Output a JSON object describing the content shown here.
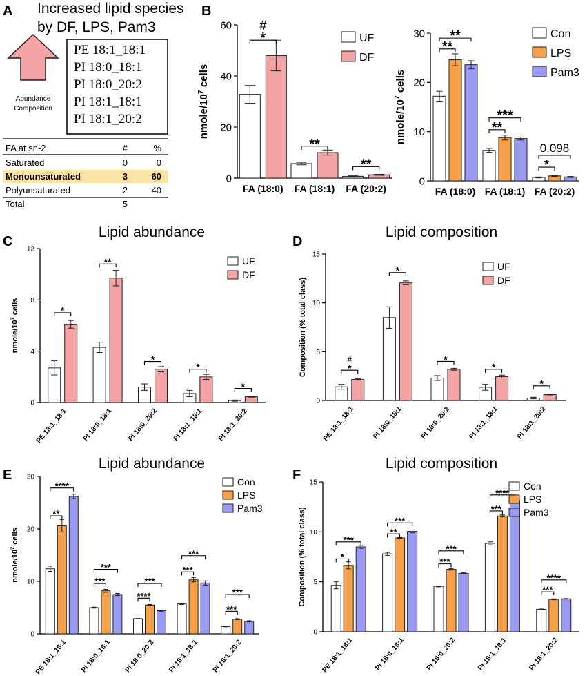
{
  "panel_a": {
    "label": "A",
    "title_line1": "Increased lipid species",
    "title_line2": "by DF, LPS, Pam3",
    "arrow_caption_1": "Abundance",
    "arrow_caption_2": "Composition",
    "species": [
      "PE 18:1_18:1",
      "PI 18:0_18:1",
      "PI 18:0_20:2",
      "PI 18:1_18:1",
      "PI 18:1_20:2"
    ],
    "table": {
      "header": [
        "FA at sn-2",
        "#",
        "%"
      ],
      "rows": [
        [
          "Saturated",
          "0",
          "0"
        ],
        [
          "Monounsaturated",
          "3",
          "60"
        ],
        [
          "Polyunsaturated",
          "2",
          "40"
        ],
        [
          "Total",
          "5",
          ""
        ]
      ],
      "highlight_color": "#fbe3a6"
    }
  },
  "colors": {
    "UF": "#ffffff",
    "DF": "#f4a4a4",
    "Con": "#ffffff",
    "LPS": "#f5a04a",
    "Pam3": "#9a9af2"
  },
  "chart_data": [
    {
      "id": "B1",
      "panel": "B",
      "type": "bar",
      "title": "",
      "categories": [
        "FA (18:0)",
        "FA (18:1)",
        "FA (20:2)"
      ],
      "series": [
        {
          "name": "UF",
          "values": [
            32.8,
            5.7,
            0.7
          ],
          "errors": [
            3.5,
            0.5,
            0.2
          ]
        },
        {
          "name": "DF",
          "values": [
            48,
            10,
            1.3
          ],
          "errors": [
            6,
            1,
            0.2
          ]
        }
      ],
      "ylabel": "nmole/10^7 cells",
      "ylim": [
        0,
        60
      ],
      "yticks": [
        0,
        20,
        40,
        60
      ],
      "annotations": [
        {
          "cat": 0,
          "from": 0,
          "to": 1,
          "text": "*",
          "extra": "#",
          "y": 54
        },
        {
          "cat": 1,
          "from": 0,
          "to": 1,
          "text": "**",
          "y": 12.5
        },
        {
          "cat": 2,
          "from": 0,
          "to": 1,
          "text": "**",
          "y": 4.5
        }
      ],
      "legend": "top-right"
    },
    {
      "id": "B2",
      "panel": "",
      "type": "bar",
      "title": "",
      "categories": [
        "FA (18:0)",
        "FA (18:1)",
        "FA (20:2)"
      ],
      "series": [
        {
          "name": "Con",
          "values": [
            17.2,
            6.2,
            0.7
          ],
          "errors": [
            1,
            0.4,
            0.1
          ]
        },
        {
          "name": "LPS",
          "values": [
            24.6,
            8.8,
            1
          ],
          "errors": [
            1.2,
            0.5,
            0.1
          ]
        },
        {
          "name": "Pam3",
          "values": [
            23.6,
            8.6,
            0.8
          ],
          "errors": [
            0.8,
            0.3,
            0.1
          ]
        }
      ],
      "ylabel": "nmole/10^7 cells",
      "ylim": [
        0,
        30
      ],
      "yticks": [
        0,
        10,
        20,
        30
      ],
      "annotations": [
        {
          "cat": 0,
          "from": 0,
          "to": 1,
          "text": "**",
          "y": 26.8
        },
        {
          "cat": 0,
          "from": 0,
          "to": 2,
          "text": "**",
          "y": 29
        },
        {
          "cat": 1,
          "from": 0,
          "to": 1,
          "text": "**",
          "y": 10.4
        },
        {
          "cat": 1,
          "from": 0,
          "to": 2,
          "text": "***",
          "y": 12.8
        },
        {
          "cat": 2,
          "from": 0,
          "to": 1,
          "text": "*",
          "y": 2.8
        },
        {
          "cat": 2,
          "from": 0,
          "to": 2,
          "text": "0.098",
          "y": 5.2
        }
      ],
      "legend": "top-right"
    },
    {
      "id": "C",
      "panel": "C",
      "type": "bar",
      "title": "Lipid abundance",
      "categories": [
        "PE 18:1_18:1",
        "PI 18:0_18:1",
        "PI 18:0_20:2",
        "PI 18:1_18:1",
        "PI 18:1_20:2"
      ],
      "series": [
        {
          "name": "UF",
          "values": [
            2.7,
            4.3,
            1.2,
            0.7,
            0.15
          ],
          "errors": [
            0.55,
            0.4,
            0.25,
            0.25,
            0.05
          ]
        },
        {
          "name": "DF",
          "values": [
            6.1,
            9.7,
            2.6,
            2.0,
            0.45
          ],
          "errors": [
            0.3,
            0.6,
            0.2,
            0.2,
            0.03
          ]
        }
      ],
      "ylabel": "nmole/10^7 cells",
      "ylim": [
        0,
        12
      ],
      "yticks": [
        0,
        4,
        8,
        12
      ],
      "annotations": [
        {
          "cat": 0,
          "from": 0,
          "to": 1,
          "text": "*",
          "y": 7.0
        },
        {
          "cat": 1,
          "from": 0,
          "to": 1,
          "text": "**",
          "y": 10.8
        },
        {
          "cat": 2,
          "from": 0,
          "to": 1,
          "text": "*",
          "y": 3.2
        },
        {
          "cat": 3,
          "from": 0,
          "to": 1,
          "text": "*",
          "y": 2.6
        },
        {
          "cat": 4,
          "from": 0,
          "to": 1,
          "text": "*",
          "y": 1.1
        }
      ],
      "legend": "top-right"
    },
    {
      "id": "D",
      "panel": "D",
      "type": "bar",
      "title": "Lipid composition",
      "categories": [
        "PE 18:1_18:1",
        "PI 18:0_18:1",
        "PI 18:0_20:2",
        "PI 18:1_18:1",
        "PI 18:1_20:2"
      ],
      "series": [
        {
          "name": "UF",
          "values": [
            1.4,
            8.5,
            2.3,
            1.35,
            0.25
          ],
          "errors": [
            0.25,
            1.1,
            0.25,
            0.3,
            0.08
          ]
        },
        {
          "name": "DF",
          "values": [
            2.15,
            12.05,
            3.2,
            2.45,
            0.6
          ],
          "errors": [
            0.07,
            0.2,
            0.1,
            0.15,
            0.03
          ]
        }
      ],
      "ylabel": "Composition (% total class)",
      "ylim": [
        0,
        15
      ],
      "yticks": [
        0,
        5,
        10,
        15
      ],
      "annotations": [
        {
          "cat": 0,
          "from": 0,
          "to": 1,
          "text": "*",
          "extra": "#",
          "y": 3.1
        },
        {
          "cat": 1,
          "from": 0,
          "to": 1,
          "text": "*",
          "y": 13.1
        },
        {
          "cat": 2,
          "from": 0,
          "to": 1,
          "text": "*",
          "y": 4.0
        },
        {
          "cat": 3,
          "from": 0,
          "to": 1,
          "text": "*",
          "y": 3.2
        },
        {
          "cat": 4,
          "from": 0,
          "to": 1,
          "text": "*",
          "y": 1.5
        }
      ],
      "legend": "top-right"
    },
    {
      "id": "E",
      "panel": "E",
      "type": "bar",
      "title": "Lipid abundance",
      "categories": [
        "PE 18:1_18:1",
        "PI 18:0_18:1",
        "PI 18:0_20:2",
        "PI 18:1_18:1",
        "PI 18:1_20:2"
      ],
      "series": [
        {
          "name": "Con",
          "values": [
            12.4,
            5.0,
            2.9,
            5.7,
            1.4
          ],
          "errors": [
            0.5,
            0.1,
            0.05,
            0.1,
            0.05
          ]
        },
        {
          "name": "LPS",
          "values": [
            20.6,
            8.2,
            5.5,
            10.3,
            2.8
          ],
          "errors": [
            1.2,
            0.3,
            0.1,
            0.4,
            0.1
          ]
        },
        {
          "name": "Pam3",
          "values": [
            26.2,
            7.5,
            4.4,
            9.7,
            2.4
          ],
          "errors": [
            0.4,
            0.2,
            0.1,
            0.4,
            0.1
          ]
        }
      ],
      "ylabel": "nmole/10^7 cells",
      "ylim": [
        0,
        30
      ],
      "yticks": [
        0,
        10,
        20,
        30
      ],
      "annotations": [
        {
          "cat": 0,
          "from": 0,
          "to": 1,
          "text": "**",
          "y": 22.5
        },
        {
          "cat": 0,
          "from": 0,
          "to": 2,
          "text": "****",
          "y": 27.8
        },
        {
          "cat": 1,
          "from": 0,
          "to": 1,
          "text": "***",
          "y": 9.6
        },
        {
          "cat": 1,
          "from": 0,
          "to": 2,
          "text": "***",
          "y": 12.3
        },
        {
          "cat": 2,
          "from": 0,
          "to": 1,
          "text": "****",
          "y": 6.8
        },
        {
          "cat": 2,
          "from": 0,
          "to": 2,
          "text": "***",
          "y": 9.6
        },
        {
          "cat": 3,
          "from": 0,
          "to": 1,
          "text": "***",
          "y": 11.8
        },
        {
          "cat": 3,
          "from": 0,
          "to": 2,
          "text": "***",
          "y": 14.9
        },
        {
          "cat": 4,
          "from": 0,
          "to": 1,
          "text": "***",
          "y": 4.3
        },
        {
          "cat": 4,
          "from": 0,
          "to": 2,
          "text": "***",
          "y": 7.5
        }
      ],
      "legend": "top-right"
    },
    {
      "id": "F",
      "panel": "F",
      "type": "bar",
      "title": "Lipid composition",
      "categories": [
        "PE 18:1_18:1",
        "PI 18:0_18:1",
        "PI 18:0_20:2",
        "PI 18:1_18:1",
        "PI 18:1_20:2"
      ],
      "series": [
        {
          "name": "Con",
          "values": [
            4.65,
            7.8,
            4.55,
            8.85,
            2.25
          ],
          "errors": [
            0.35,
            0.15,
            0.05,
            0.15,
            0.03
          ]
        },
        {
          "name": "LPS",
          "values": [
            6.65,
            9.4,
            6.25,
            11.6,
            3.25
          ],
          "errors": [
            0.35,
            0.05,
            0.08,
            0.1,
            0.05
          ]
        },
        {
          "name": "Pam3",
          "values": [
            8.5,
            10.05,
            5.85,
            13.1,
            3.3
          ],
          "errors": [
            0.15,
            0.15,
            0.05,
            0.1,
            0.03
          ]
        }
      ],
      "ylabel": "Composition (% total class)",
      "ylim": [
        0,
        15
      ],
      "yticks": [
        0,
        5,
        10,
        15
      ],
      "annotations": [
        {
          "cat": 0,
          "from": 0,
          "to": 1,
          "text": "*",
          "y": 7.3
        },
        {
          "cat": 0,
          "from": 0,
          "to": 2,
          "text": "***",
          "y": 9.0
        },
        {
          "cat": 1,
          "from": 0,
          "to": 1,
          "text": "**",
          "y": 9.8
        },
        {
          "cat": 1,
          "from": 0,
          "to": 2,
          "text": "***",
          "y": 10.9
        },
        {
          "cat": 2,
          "from": 0,
          "to": 1,
          "text": "***",
          "y": 6.8
        },
        {
          "cat": 2,
          "from": 0,
          "to": 2,
          "text": "***",
          "y": 8.1
        },
        {
          "cat": 3,
          "from": 0,
          "to": 1,
          "text": "***",
          "y": 12.1
        },
        {
          "cat": 3,
          "from": 0,
          "to": 2,
          "text": "****",
          "y": 13.7
        },
        {
          "cat": 4,
          "from": 0,
          "to": 1,
          "text": "***",
          "y": 4.0
        },
        {
          "cat": 4,
          "from": 0,
          "to": 2,
          "text": "****",
          "y": 5.2
        }
      ],
      "legend": "top-right"
    }
  ]
}
